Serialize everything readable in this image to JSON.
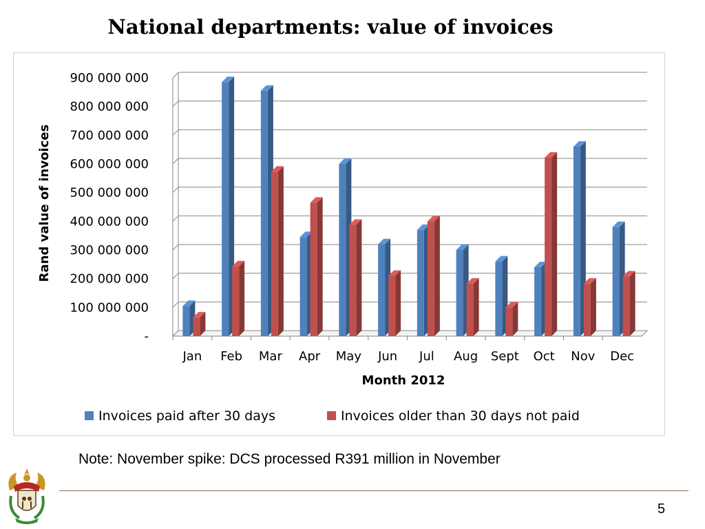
{
  "slide": {
    "title": "National departments: value of invoices",
    "note": "Note: November spike: DCS processed R391 million in November",
    "page_number": "5",
    "logo_icon": "coat-of-arms-icon"
  },
  "colors": {
    "series_blue": "#4f81bd",
    "series_red": "#c0504d",
    "gridline": "#868686"
  },
  "chart_data": {
    "type": "bar",
    "style": "3d-clustered-column",
    "xlabel": "Month 2012",
    "ylabel": "Rand value of invoices",
    "categories": [
      "Jan",
      "Feb",
      "Mar",
      "Apr",
      "May",
      "Jun",
      "Jul",
      "Aug",
      "Sept",
      "Oct",
      "Nov",
      "Dec"
    ],
    "ylim": [
      0,
      900000000
    ],
    "y_ticks": [
      0,
      100000000,
      200000000,
      300000000,
      400000000,
      500000000,
      600000000,
      700000000,
      800000000,
      900000000
    ],
    "y_tick_labels": [
      "-",
      "100 000 000",
      "200 000 000",
      "300 000 000",
      "400 000 000",
      "500 000 000",
      "600 000 000",
      "700 000 000",
      "800 000 000",
      "900 000 000"
    ],
    "grid": true,
    "legend_position": "bottom",
    "series": [
      {
        "name": "Invoices paid after 30 days",
        "values": [
          105000000,
          885000000,
          855000000,
          345000000,
          600000000,
          320000000,
          370000000,
          300000000,
          260000000,
          240000000,
          660000000,
          380000000
        ]
      },
      {
        "name": "Invoices older than 30 days not paid",
        "values": [
          65000000,
          243000000,
          573000000,
          465000000,
          388000000,
          210000000,
          400000000,
          183000000,
          100000000,
          622000000,
          183000000,
          208000000
        ]
      }
    ]
  }
}
